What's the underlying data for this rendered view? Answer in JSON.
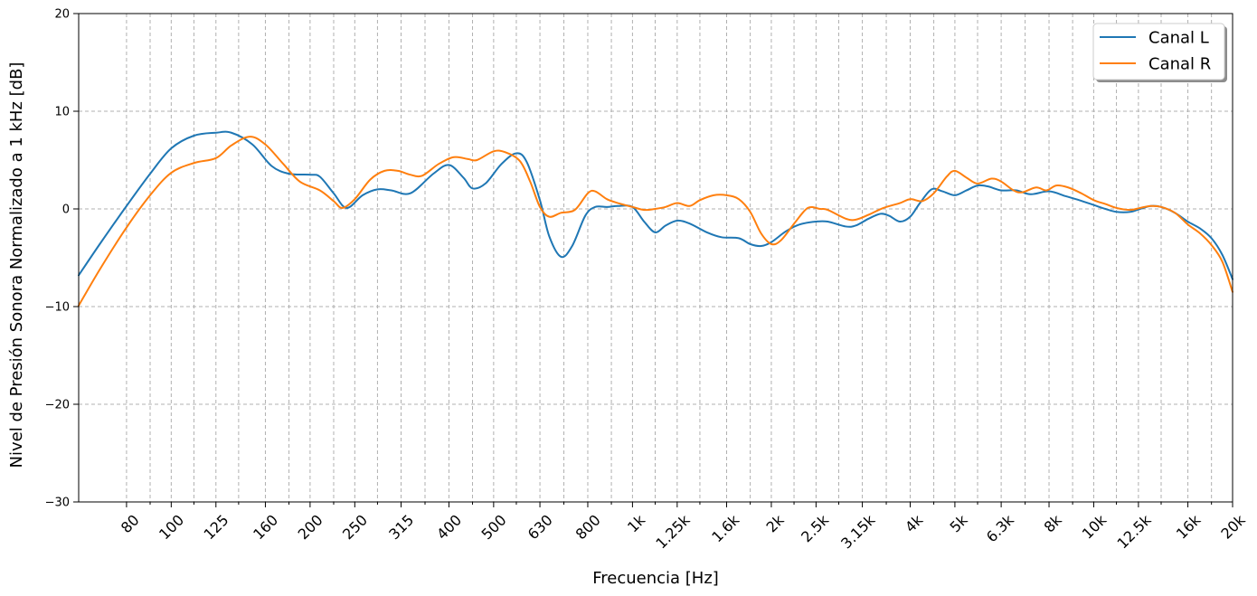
{
  "chart_data": {
    "type": "line",
    "title": "",
    "xlabel": "Frecuencia [Hz]",
    "ylabel": "Nivel de Presión Sonora Normalizado a 1 kHz [dB]",
    "xscale": "log",
    "xlim": [
      63,
      20000
    ],
    "ylim": [
      -30,
      20
    ],
    "yticks": [
      -30,
      -20,
      -10,
      0,
      10,
      20
    ],
    "ytick_labels": [
      "−30",
      "−20",
      "−10",
      "0",
      "10",
      "20"
    ],
    "xticks": [
      80,
      100,
      125,
      160,
      200,
      250,
      315,
      400,
      500,
      630,
      800,
      1000,
      1250,
      1600,
      2000,
      2500,
      3150,
      4000,
      5000,
      6300,
      8000,
      10000,
      12500,
      16000,
      20000
    ],
    "xtick_labels": [
      "80",
      "100",
      "125",
      "160",
      "200",
      "250",
      "315",
      "400",
      "500",
      "630",
      "800",
      "1k",
      "1.25k",
      "1.6k",
      "2k",
      "2.5k",
      "3.15k",
      "4k",
      "5k",
      "6.3k",
      "8k",
      "10k",
      "12.5k",
      "16k",
      "20k"
    ],
    "minor_grid_x": [
      90,
      112,
      140,
      180,
      225,
      280,
      355,
      450,
      560,
      710,
      900,
      1120,
      1400,
      1800,
      2240,
      2800,
      3550,
      4500,
      5600,
      7100,
      9000,
      11200,
      14000,
      18000
    ],
    "grid": true,
    "legend_position": "top-right",
    "series": [
      {
        "name": "Canal L",
        "color": "#1f77b4",
        "points": [
          [
            63,
            -6.8
          ],
          [
            70,
            -3.6
          ],
          [
            80,
            0.3
          ],
          [
            90,
            3.6
          ],
          [
            100,
            6.2
          ],
          [
            112,
            7.5
          ],
          [
            125,
            7.8
          ],
          [
            135,
            7.8
          ],
          [
            150,
            6.6
          ],
          [
            165,
            4.4
          ],
          [
            180,
            3.6
          ],
          [
            200,
            3.5
          ],
          [
            210,
            3.3
          ],
          [
            225,
            1.6
          ],
          [
            240,
            0.1
          ],
          [
            260,
            1.4
          ],
          [
            280,
            2.0
          ],
          [
            300,
            1.9
          ],
          [
            330,
            1.6
          ],
          [
            370,
            3.6
          ],
          [
            400,
            4.5
          ],
          [
            430,
            3.2
          ],
          [
            450,
            2.1
          ],
          [
            480,
            2.6
          ],
          [
            520,
            4.6
          ],
          [
            560,
            5.7
          ],
          [
            590,
            4.8
          ],
          [
            630,
            0.9
          ],
          [
            660,
            -2.8
          ],
          [
            700,
            -4.9
          ],
          [
            740,
            -3.8
          ],
          [
            790,
            -0.7
          ],
          [
            830,
            0.2
          ],
          [
            880,
            0.2
          ],
          [
            930,
            0.3
          ],
          [
            1000,
            0.2
          ],
          [
            1060,
            -1.3
          ],
          [
            1120,
            -2.4
          ],
          [
            1180,
            -1.7
          ],
          [
            1250,
            -1.2
          ],
          [
            1330,
            -1.5
          ],
          [
            1450,
            -2.4
          ],
          [
            1560,
            -2.9
          ],
          [
            1700,
            -3.0
          ],
          [
            1800,
            -3.6
          ],
          [
            1900,
            -3.8
          ],
          [
            2000,
            -3.4
          ],
          [
            2150,
            -2.3
          ],
          [
            2300,
            -1.6
          ],
          [
            2500,
            -1.3
          ],
          [
            2650,
            -1.3
          ],
          [
            2900,
            -1.8
          ],
          [
            3050,
            -1.7
          ],
          [
            3250,
            -1.0
          ],
          [
            3450,
            -0.5
          ],
          [
            3600,
            -0.7
          ],
          [
            3800,
            -1.3
          ],
          [
            4000,
            -0.8
          ],
          [
            4200,
            0.6
          ],
          [
            4450,
            2.0
          ],
          [
            4700,
            1.8
          ],
          [
            5000,
            1.4
          ],
          [
            5300,
            1.9
          ],
          [
            5600,
            2.4
          ],
          [
            5900,
            2.3
          ],
          [
            6300,
            1.9
          ],
          [
            6800,
            1.9
          ],
          [
            7300,
            1.5
          ],
          [
            8000,
            1.8
          ],
          [
            8700,
            1.3
          ],
          [
            9300,
            0.9
          ],
          [
            10000,
            0.4
          ],
          [
            10600,
            0.0
          ],
          [
            11200,
            -0.3
          ],
          [
            12000,
            -0.3
          ],
          [
            12600,
            0.0
          ],
          [
            13300,
            0.3
          ],
          [
            14000,
            0.2
          ],
          [
            15000,
            -0.4
          ],
          [
            16000,
            -1.3
          ],
          [
            17000,
            -2.0
          ],
          [
            18000,
            -3.0
          ],
          [
            19000,
            -4.7
          ],
          [
            20000,
            -7.2
          ]
        ]
      },
      {
        "name": "Canal R",
        "color": "#ff7f0e",
        "points": [
          [
            63,
            -9.9
          ],
          [
            70,
            -6.2
          ],
          [
            80,
            -1.9
          ],
          [
            90,
            1.4
          ],
          [
            100,
            3.7
          ],
          [
            112,
            4.7
          ],
          [
            125,
            5.2
          ],
          [
            135,
            6.5
          ],
          [
            148,
            7.4
          ],
          [
            160,
            6.6
          ],
          [
            175,
            4.6
          ],
          [
            190,
            2.8
          ],
          [
            210,
            1.9
          ],
          [
            225,
            0.8
          ],
          [
            235,
            0.1
          ],
          [
            250,
            1.0
          ],
          [
            270,
            3.0
          ],
          [
            290,
            3.9
          ],
          [
            310,
            3.9
          ],
          [
            330,
            3.5
          ],
          [
            350,
            3.4
          ],
          [
            380,
            4.6
          ],
          [
            410,
            5.3
          ],
          [
            440,
            5.1
          ],
          [
            460,
            5.0
          ],
          [
            500,
            5.9
          ],
          [
            530,
            5.8
          ],
          [
            570,
            4.9
          ],
          [
            600,
            2.8
          ],
          [
            630,
            0.2
          ],
          [
            660,
            -0.8
          ],
          [
            700,
            -0.4
          ],
          [
            750,
            -0.1
          ],
          [
            800,
            1.6
          ],
          [
            830,
            1.8
          ],
          [
            880,
            1.0
          ],
          [
            930,
            0.6
          ],
          [
            1000,
            0.2
          ],
          [
            1060,
            -0.1
          ],
          [
            1120,
            0.0
          ],
          [
            1180,
            0.2
          ],
          [
            1250,
            0.6
          ],
          [
            1330,
            0.3
          ],
          [
            1400,
            0.9
          ],
          [
            1500,
            1.4
          ],
          [
            1600,
            1.4
          ],
          [
            1700,
            1.0
          ],
          [
            1800,
            -0.3
          ],
          [
            1900,
            -2.5
          ],
          [
            2000,
            -3.6
          ],
          [
            2100,
            -3.2
          ],
          [
            2250,
            -1.4
          ],
          [
            2400,
            0.1
          ],
          [
            2550,
            0.0
          ],
          [
            2650,
            -0.1
          ],
          [
            2900,
            -1.0
          ],
          [
            3050,
            -1.1
          ],
          [
            3250,
            -0.6
          ],
          [
            3500,
            0.1
          ],
          [
            3800,
            0.6
          ],
          [
            4000,
            1.0
          ],
          [
            4250,
            0.8
          ],
          [
            4500,
            1.6
          ],
          [
            4800,
            3.3
          ],
          [
            5000,
            3.9
          ],
          [
            5300,
            3.2
          ],
          [
            5600,
            2.6
          ],
          [
            6000,
            3.1
          ],
          [
            6300,
            2.8
          ],
          [
            6700,
            1.9
          ],
          [
            7000,
            1.7
          ],
          [
            7500,
            2.2
          ],
          [
            7900,
            1.9
          ],
          [
            8300,
            2.4
          ],
          [
            8800,
            2.2
          ],
          [
            9400,
            1.6
          ],
          [
            10000,
            0.9
          ],
          [
            10600,
            0.5
          ],
          [
            11200,
            0.1
          ],
          [
            12000,
            -0.1
          ],
          [
            12600,
            0.1
          ],
          [
            13300,
            0.3
          ],
          [
            14000,
            0.2
          ],
          [
            15000,
            -0.4
          ],
          [
            16000,
            -1.6
          ],
          [
            17000,
            -2.5
          ],
          [
            18000,
            -3.7
          ],
          [
            19000,
            -5.4
          ],
          [
            20000,
            -8.5
          ]
        ]
      }
    ]
  }
}
